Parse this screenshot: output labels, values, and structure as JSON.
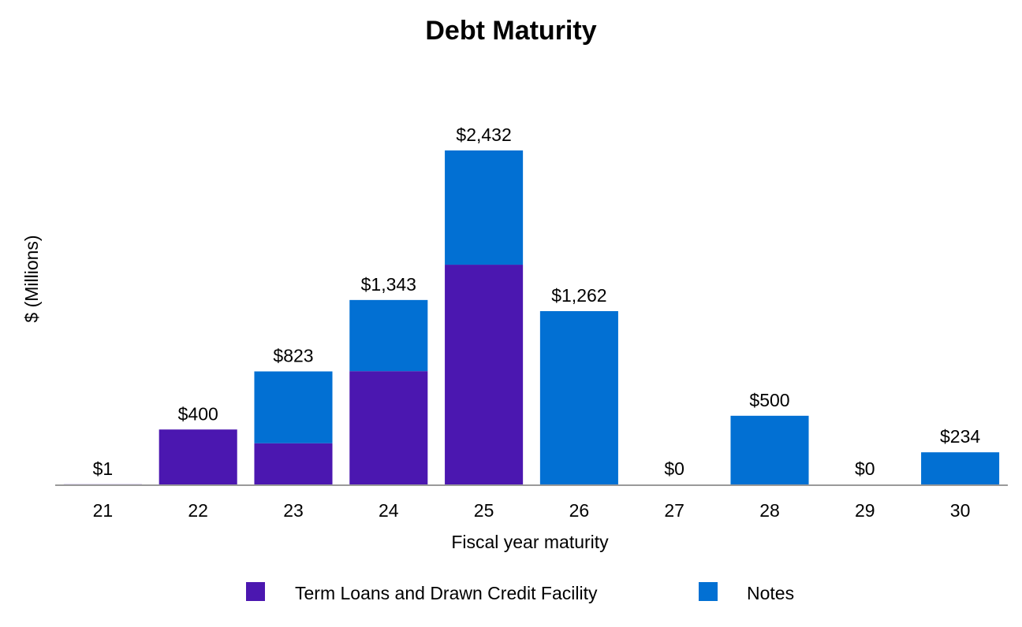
{
  "chart_data": {
    "type": "bar",
    "stacked": true,
    "title": "Debt Maturity",
    "xlabel": "Fiscal year maturity",
    "ylabel": "$ (Millions)",
    "categories": [
      "21",
      "22",
      "23",
      "24",
      "25",
      "26",
      "27",
      "28",
      "29",
      "30"
    ],
    "series": [
      {
        "name": "Term Loans and Drawn Credit Facility",
        "color": "#4B17B0",
        "values": [
          1,
          400,
          300,
          825,
          1600,
          0,
          0,
          0,
          0,
          0
        ]
      },
      {
        "name": "Notes",
        "color": "#0270D3",
        "values": [
          0,
          0,
          523,
          518,
          832,
          1262,
          0,
          500,
          0,
          234
        ]
      }
    ],
    "totals": [
      1,
      400,
      823,
      1343,
      2432,
      1262,
      0,
      500,
      0,
      234
    ],
    "total_labels": [
      "$1",
      "$400",
      "$823",
      "$1,343",
      "$2,432",
      "$1,262",
      "$0",
      "$500",
      "$0",
      "$234"
    ],
    "ylim": [
      0,
      2432
    ],
    "grid": false,
    "legend_position": "bottom"
  }
}
